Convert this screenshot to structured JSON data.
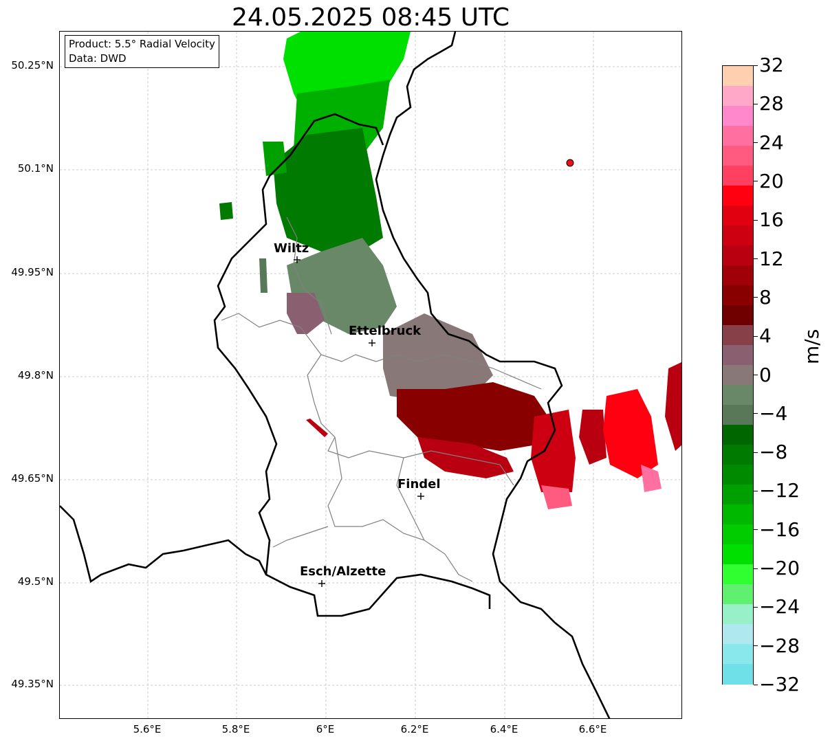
{
  "title": "24.05.2025 08:45 UTC",
  "info": {
    "product": "Product: 5.5° Radial Velocity",
    "data": "Data: DWD"
  },
  "lat_ticks": [
    "50.25°N",
    "50.1°N",
    "49.95°N",
    "49.8°N",
    "49.65°N",
    "49.5°N",
    "49.35°N"
  ],
  "lon_ticks": [
    "5.6°E",
    "5.8°E",
    "6°E",
    "6.2°E",
    "6.4°E",
    "6.6°E"
  ],
  "cities": [
    {
      "name": "Wiltz"
    },
    {
      "name": "Ettelbruck"
    },
    {
      "name": "Findel"
    },
    {
      "name": "Esch/Alzette"
    }
  ],
  "colorbar": {
    "label": "m/s",
    "ticks": [
      "32",
      "28",
      "24",
      "20",
      "16",
      "12",
      "8",
      "4",
      "0",
      "−4",
      "−8",
      "−12",
      "−16",
      "−20",
      "−24",
      "−28",
      "−32"
    ],
    "colors": [
      "#ffd0b0",
      "#ffa8c8",
      "#ff88cc",
      "#ff70a0",
      "#ff5a80",
      "#ff4060",
      "#ff0010",
      "#e00010",
      "#cc0010",
      "#b80010",
      "#a00008",
      "#880000",
      "#700000",
      "#884048",
      "#8a6070",
      "#887878",
      "#688868",
      "#587858",
      "#006600",
      "#007a00",
      "#008a00",
      "#00a000",
      "#00b800",
      "#00cc00",
      "#00e000",
      "#30ff30",
      "#60f070",
      "#98f0c8",
      "#b0e8f0",
      "#88e8ec",
      "#70e0e8"
    ]
  },
  "colors": {
    "border_country": "#000000",
    "border_canton": "#808080",
    "grid": "#bbbbbb",
    "radar_site": "#ee1111"
  }
}
